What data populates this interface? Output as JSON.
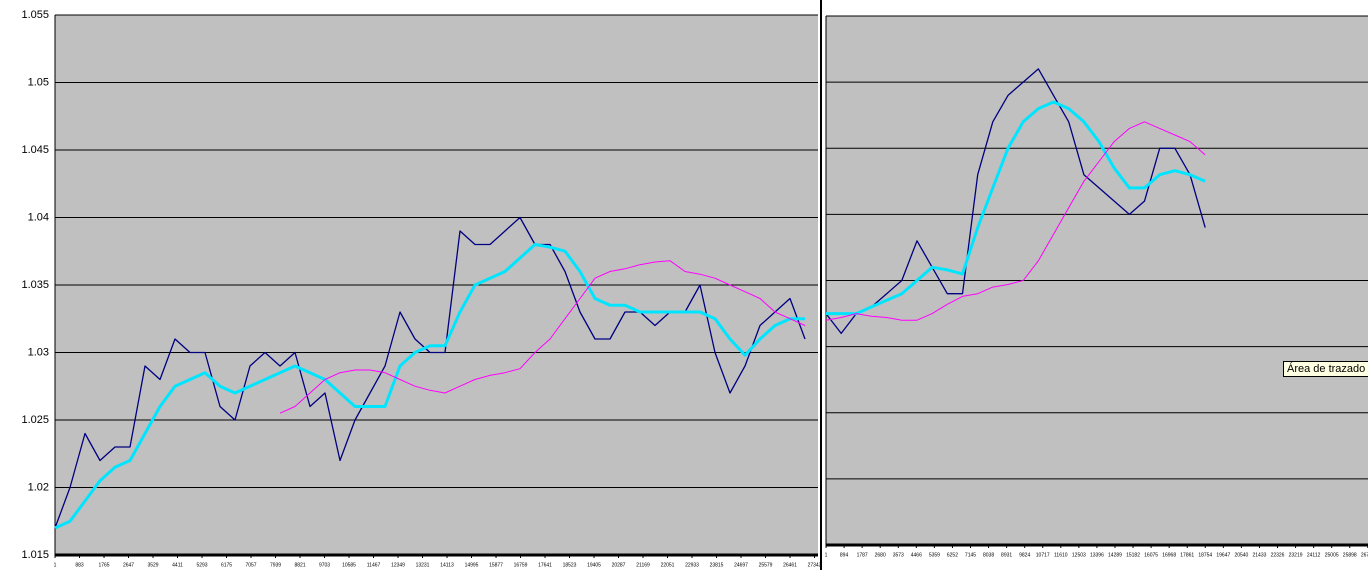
{
  "chart_data": [
    {
      "type": "line",
      "x": [
        0,
        540,
        1080,
        1620,
        2160,
        2700,
        3240,
        3780,
        4320,
        4860,
        5400,
        5940,
        6480,
        7020,
        7560,
        8100,
        8640,
        9180,
        9720,
        10260,
        10800,
        11340,
        11880,
        12420,
        12960,
        13500,
        14040,
        14580,
        15120,
        15660,
        16200,
        16740,
        17280,
        17820,
        18360,
        18900,
        19440,
        19980,
        20520,
        21060,
        21600,
        22140,
        22680,
        23220,
        23760,
        24300,
        24840,
        25380,
        25920,
        26460,
        27000
      ],
      "series": [
        {
          "color": "#000080",
          "width": 1.3,
          "values": [
            1.017,
            1.02,
            1.024,
            1.022,
            1.023,
            1.023,
            1.029,
            1.028,
            1.031,
            1.03,
            1.03,
            1.026,
            1.025,
            1.029,
            1.03,
            1.029,
            1.03,
            1.026,
            1.027,
            1.022,
            1.025,
            1.027,
            1.029,
            1.033,
            1.031,
            1.03,
            1.03,
            1.039,
            1.038,
            1.038,
            1.039,
            1.04,
            1.038,
            1.038,
            1.036,
            1.033,
            1.031,
            1.031,
            1.033,
            1.033,
            1.032,
            1.033,
            1.033,
            1.035,
            1.03,
            1.027,
            1.029,
            1.032,
            1.033,
            1.034,
            1.031
          ]
        },
        {
          "color": "#00e5ff",
          "width": 3,
          "values": [
            1.017,
            1.0175,
            1.019,
            1.0205,
            1.0215,
            1.022,
            1.024,
            1.026,
            1.0275,
            1.028,
            1.0285,
            1.0275,
            1.027,
            1.0275,
            1.028,
            1.0285,
            1.029,
            1.0285,
            1.028,
            1.027,
            1.026,
            1.026,
            1.026,
            1.029,
            1.03,
            1.0305,
            1.0305,
            1.033,
            1.035,
            1.0355,
            1.036,
            1.037,
            1.038,
            1.0378,
            1.0375,
            1.036,
            1.034,
            1.0335,
            1.0335,
            1.033,
            1.033,
            1.033,
            1.033,
            1.033,
            1.0325,
            1.031,
            1.0298,
            1.031,
            1.032,
            1.0325,
            1.0325
          ]
        },
        {
          "color": "#ff00ff",
          "width": 1,
          "values": [
            null,
            null,
            null,
            null,
            null,
            null,
            null,
            null,
            null,
            null,
            null,
            null,
            null,
            null,
            null,
            1.0255,
            1.026,
            1.027,
            1.028,
            1.0285,
            1.0287,
            1.0287,
            1.0285,
            1.028,
            1.0275,
            1.0272,
            1.027,
            1.0275,
            1.028,
            1.0283,
            1.0285,
            1.0288,
            1.03,
            1.031,
            1.0325,
            1.034,
            1.0355,
            1.036,
            1.0362,
            1.0365,
            1.0367,
            1.0368,
            1.036,
            1.0358,
            1.0355,
            1.035,
            1.0345,
            1.034,
            1.033,
            1.0325,
            1.032
          ]
        }
      ],
      "xlim": [
        0,
        27468
      ],
      "xticks": [
        1,
        883,
        1765,
        2647,
        3529,
        4411,
        5293,
        6175,
        7057,
        7939,
        8821,
        9703,
        10585,
        11467,
        12349,
        13231,
        14113,
        14995,
        15877,
        16759,
        17641,
        18523,
        19405,
        20287,
        21169,
        22051,
        22933,
        23815,
        24697,
        25579,
        26461,
        27343
      ],
      "ylim": [
        1.015,
        1.055
      ],
      "yticks": [
        1.015,
        1.02,
        1.025,
        1.03,
        1.035,
        1.04,
        1.045,
        1.05,
        1.055
      ],
      "ytick_labels": true,
      "grid": true,
      "background": "#c0c0c0"
    },
    {
      "type": "line",
      "x": [
        0,
        750,
        1500,
        2250,
        3000,
        3750,
        4500,
        5250,
        6000,
        6750,
        7500,
        8250,
        9000,
        9750,
        10500,
        11250,
        12000,
        12750,
        13500,
        14250,
        15000,
        15750,
        16500,
        17250,
        18000,
        18750
      ],
      "series": [
        {
          "color": "#000080",
          "width": 1.3,
          "values": [
            1.0325,
            1.031,
            1.0325,
            1.033,
            1.034,
            1.035,
            1.038,
            1.036,
            1.034,
            1.034,
            1.043,
            1.047,
            1.049,
            1.05,
            1.051,
            1.049,
            1.047,
            1.043,
            1.042,
            1.041,
            1.04,
            1.041,
            1.045,
            1.045,
            1.043,
            1.039
          ]
        },
        {
          "color": "#00e5ff",
          "width": 3,
          "values": [
            1.0325,
            1.0325,
            1.0325,
            1.033,
            1.0335,
            1.034,
            1.035,
            1.036,
            1.0358,
            1.0355,
            1.039,
            1.042,
            1.045,
            1.047,
            1.048,
            1.0485,
            1.048,
            1.047,
            1.0455,
            1.0435,
            1.042,
            1.042,
            1.043,
            1.0433,
            1.043,
            1.0425
          ]
        },
        {
          "color": "#ff00ff",
          "width": 1,
          "values": [
            1.032,
            1.0322,
            1.0325,
            1.0323,
            1.0322,
            1.032,
            1.032,
            1.0325,
            1.0332,
            1.0338,
            1.034,
            1.0345,
            1.0347,
            1.035,
            1.0365,
            1.0385,
            1.0405,
            1.0425,
            1.044,
            1.0455,
            1.0465,
            1.047,
            1.0465,
            1.046,
            1.0455,
            1.0445
          ]
        }
      ],
      "xlim": [
        0,
        26800
      ],
      "xticks": [
        1,
        894,
        1787,
        2680,
        3573,
        4466,
        5359,
        6252,
        7145,
        8038,
        8931,
        9824,
        10717,
        11610,
        12503,
        13396,
        14289,
        15182,
        16075,
        16968,
        17861,
        18754,
        19647,
        20540,
        21433,
        22326,
        23219,
        24112,
        25005,
        25898,
        26791
      ],
      "ylim": [
        1.015,
        1.055
      ],
      "yticks": [
        1.015,
        1.02,
        1.025,
        1.03,
        1.035,
        1.04,
        1.045,
        1.05,
        1.055
      ],
      "ytick_labels": false,
      "grid": true,
      "background": "#c0c0c0"
    }
  ],
  "tooltip": "Área de trazado"
}
